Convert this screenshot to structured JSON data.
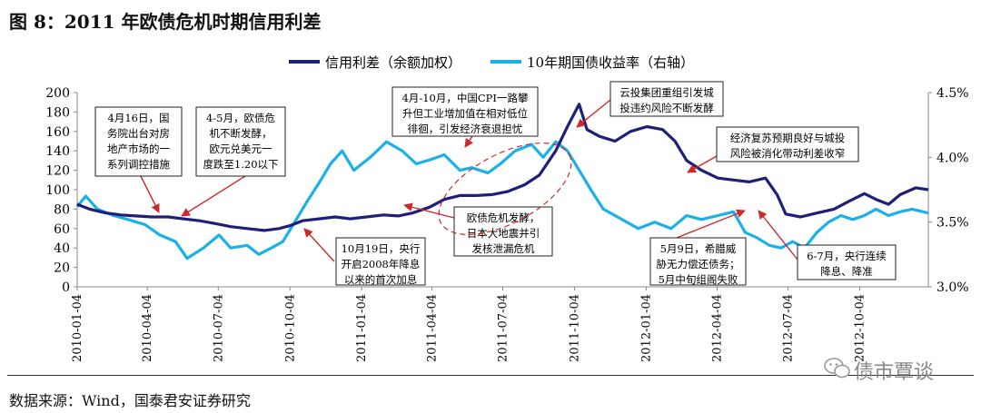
{
  "title": "图 8：2011 年欧债危机时期信用利差",
  "source": "数据来源：Wind，国泰君安证券研究",
  "watermark": "债市覃谈",
  "watermark_icon": "wechat-icon",
  "colors": {
    "spread": "#1f1f7a",
    "yield": "#1ab0ea",
    "arrow": "#cc2b2b",
    "axis": "#888888"
  },
  "chart_data": {
    "type": "line",
    "legend_position": "top",
    "grid": false,
    "x_ticks": [
      "2010-01-04",
      "2010-04-04",
      "2010-07-04",
      "2010-10-04",
      "2011-01-04",
      "2011-04-04",
      "2011-07-04",
      "2011-10-04",
      "2012-01-04",
      "2012-04-04",
      "2012-07-04",
      "2012-10-04"
    ],
    "x_range": [
      "2010-01-04",
      "2012-12-31"
    ],
    "y_left": {
      "ticks": [
        "0",
        "20",
        "40",
        "60",
        "80",
        "100",
        "120",
        "140",
        "160",
        "180",
        "200"
      ],
      "range": [
        0,
        200
      ]
    },
    "y_right": {
      "ticks": [
        "3.0%",
        "3.5%",
        "4.0%",
        "4.5%"
      ],
      "range": [
        3.0,
        4.5
      ]
    },
    "series": [
      {
        "name": "信用利差（余额加权）",
        "axis": "left",
        "points": [
          [
            "2010-01-04",
            85
          ],
          [
            "2010-01-20",
            80
          ],
          [
            "2010-02-10",
            76
          ],
          [
            "2010-03-01",
            74
          ],
          [
            "2010-03-20",
            73
          ],
          [
            "2010-04-10",
            72
          ],
          [
            "2010-05-01",
            72
          ],
          [
            "2010-05-20",
            70
          ],
          [
            "2010-06-10",
            68
          ],
          [
            "2010-07-01",
            65
          ],
          [
            "2010-07-20",
            62
          ],
          [
            "2010-08-10",
            60
          ],
          [
            "2010-09-01",
            58
          ],
          [
            "2010-09-20",
            60
          ],
          [
            "2010-10-04",
            63
          ],
          [
            "2010-10-20",
            68
          ],
          [
            "2010-11-10",
            70
          ],
          [
            "2010-12-01",
            72
          ],
          [
            "2010-12-20",
            70
          ],
          [
            "2011-01-10",
            72
          ],
          [
            "2011-02-01",
            74
          ],
          [
            "2011-02-20",
            73
          ],
          [
            "2011-03-10",
            76
          ],
          [
            "2011-04-01",
            82
          ],
          [
            "2011-04-20",
            90
          ],
          [
            "2011-05-10",
            94
          ],
          [
            "2011-06-01",
            94
          ],
          [
            "2011-06-20",
            95
          ],
          [
            "2011-07-10",
            98
          ],
          [
            "2011-08-01",
            105
          ],
          [
            "2011-08-20",
            115
          ],
          [
            "2011-09-10",
            140
          ],
          [
            "2011-09-25",
            165
          ],
          [
            "2011-10-10",
            188
          ],
          [
            "2011-10-20",
            162
          ],
          [
            "2011-11-05",
            155
          ],
          [
            "2011-11-25",
            150
          ],
          [
            "2011-12-15",
            160
          ],
          [
            "2012-01-05",
            165
          ],
          [
            "2012-01-25",
            162
          ],
          [
            "2012-02-10",
            150
          ],
          [
            "2012-02-25",
            130
          ],
          [
            "2012-03-15",
            120
          ],
          [
            "2012-04-05",
            112
          ],
          [
            "2012-04-25",
            110
          ],
          [
            "2012-05-15",
            108
          ],
          [
            "2012-06-05",
            112
          ],
          [
            "2012-06-20",
            95
          ],
          [
            "2012-07-01",
            75
          ],
          [
            "2012-07-20",
            72
          ],
          [
            "2012-08-10",
            76
          ],
          [
            "2012-09-01",
            80
          ],
          [
            "2012-09-20",
            88
          ],
          [
            "2012-10-10",
            96
          ],
          [
            "2012-10-25",
            90
          ],
          [
            "2012-11-10",
            85
          ],
          [
            "2012-11-25",
            95
          ],
          [
            "2012-12-15",
            102
          ],
          [
            "2012-12-31",
            100
          ]
        ]
      },
      {
        "name": "10年期国债收益率（右轴）",
        "axis": "right",
        "points": [
          [
            "2010-01-04",
            3.62
          ],
          [
            "2010-01-15",
            3.7
          ],
          [
            "2010-01-30",
            3.6
          ],
          [
            "2010-02-20",
            3.55
          ],
          [
            "2010-03-10",
            3.52
          ],
          [
            "2010-04-01",
            3.48
          ],
          [
            "2010-04-20",
            3.4
          ],
          [
            "2010-05-10",
            3.35
          ],
          [
            "2010-05-25",
            3.22
          ],
          [
            "2010-06-15",
            3.3
          ],
          [
            "2010-07-05",
            3.4
          ],
          [
            "2010-07-20",
            3.3
          ],
          [
            "2010-08-10",
            3.32
          ],
          [
            "2010-08-25",
            3.25
          ],
          [
            "2010-09-10",
            3.3
          ],
          [
            "2010-09-25",
            3.35
          ],
          [
            "2010-10-10",
            3.5
          ],
          [
            "2010-10-25",
            3.65
          ],
          [
            "2010-11-10",
            3.8
          ],
          [
            "2010-11-25",
            3.95
          ],
          [
            "2010-12-10",
            4.05
          ],
          [
            "2010-12-25",
            3.9
          ],
          [
            "2011-01-15",
            4.0
          ],
          [
            "2011-02-05",
            4.12
          ],
          [
            "2011-02-25",
            4.05
          ],
          [
            "2011-03-15",
            3.95
          ],
          [
            "2011-04-01",
            3.98
          ],
          [
            "2011-04-20",
            4.02
          ],
          [
            "2011-05-10",
            3.9
          ],
          [
            "2011-05-25",
            3.92
          ],
          [
            "2011-06-15",
            3.88
          ],
          [
            "2011-07-01",
            3.95
          ],
          [
            "2011-07-20",
            4.05
          ],
          [
            "2011-08-10",
            4.1
          ],
          [
            "2011-08-25",
            4.0
          ],
          [
            "2011-09-10",
            4.12
          ],
          [
            "2011-09-25",
            4.05
          ],
          [
            "2011-10-10",
            3.9
          ],
          [
            "2011-10-25",
            3.75
          ],
          [
            "2011-11-10",
            3.6
          ],
          [
            "2011-11-25",
            3.55
          ],
          [
            "2011-12-10",
            3.5
          ],
          [
            "2011-12-25",
            3.45
          ],
          [
            "2012-01-15",
            3.5
          ],
          [
            "2012-02-05",
            3.45
          ],
          [
            "2012-02-25",
            3.55
          ],
          [
            "2012-03-15",
            3.52
          ],
          [
            "2012-04-05",
            3.55
          ],
          [
            "2012-04-25",
            3.58
          ],
          [
            "2012-05-10",
            3.42
          ],
          [
            "2012-05-25",
            3.38
          ],
          [
            "2012-06-10",
            3.32
          ],
          [
            "2012-06-25",
            3.3
          ],
          [
            "2012-07-10",
            3.35
          ],
          [
            "2012-07-25",
            3.3
          ],
          [
            "2012-08-10",
            3.42
          ],
          [
            "2012-08-25",
            3.5
          ],
          [
            "2012-09-10",
            3.55
          ],
          [
            "2012-09-25",
            3.52
          ],
          [
            "2012-10-10",
            3.55
          ],
          [
            "2012-10-25",
            3.6
          ],
          [
            "2012-11-10",
            3.55
          ],
          [
            "2012-11-25",
            3.58
          ],
          [
            "2012-12-10",
            3.6
          ],
          [
            "2012-12-31",
            3.57
          ]
        ]
      }
    ],
    "annotations": [
      {
        "lines": [
          "4月16日，国",
          "务院出台对房",
          "地产市场的一",
          "系列调控措施"
        ],
        "points_to": [
          "2010-04-16",
          75
        ]
      },
      {
        "lines": [
          "4-5月，欧债危",
          "机不断发酵，",
          "欧元兑美元一",
          "度跌至1.20以下"
        ],
        "points_to": [
          "2010-05-10",
          73
        ]
      },
      {
        "lines": [
          "10月19日，央行",
          "开启2008年降息",
          "以来的首次加息"
        ],
        "points_to": [
          "2010-10-19",
          65
        ]
      },
      {
        "lines": [
          "4月-10月，中国CPI一路攀",
          "升但工业增加值在相对低位",
          "徘徊，引发经济衰退担忧"
        ],
        "points_to": [
          "2011-06-15",
          95
        ]
      },
      {
        "lines": [
          "欧债危机发酵，",
          "日本大地震并引",
          "发核泄漏危机"
        ],
        "points_to": [
          "2011-03-15",
          80
        ]
      },
      {
        "lines": [
          "云投集团重组引发城",
          "投违约风险不断发酵"
        ],
        "points_to": [
          "2011-10-05",
          185
        ]
      },
      {
        "lines": [
          "经济复苏预期良好与城投",
          "风险被消化带动利差收窄"
        ],
        "points_to": [
          "2012-03-10",
          118
        ]
      },
      {
        "lines": [
          "5月9日，希腊威",
          "胁无力偿还债务；",
          "5月中旬组阁失败"
        ],
        "points_to": [
          "2012-05-20",
          75
        ]
      },
      {
        "lines": [
          "6-7月，央行连续",
          "降息、降准"
        ],
        "points_to": [
          "2012-06-20",
          95
        ]
      }
    ]
  }
}
